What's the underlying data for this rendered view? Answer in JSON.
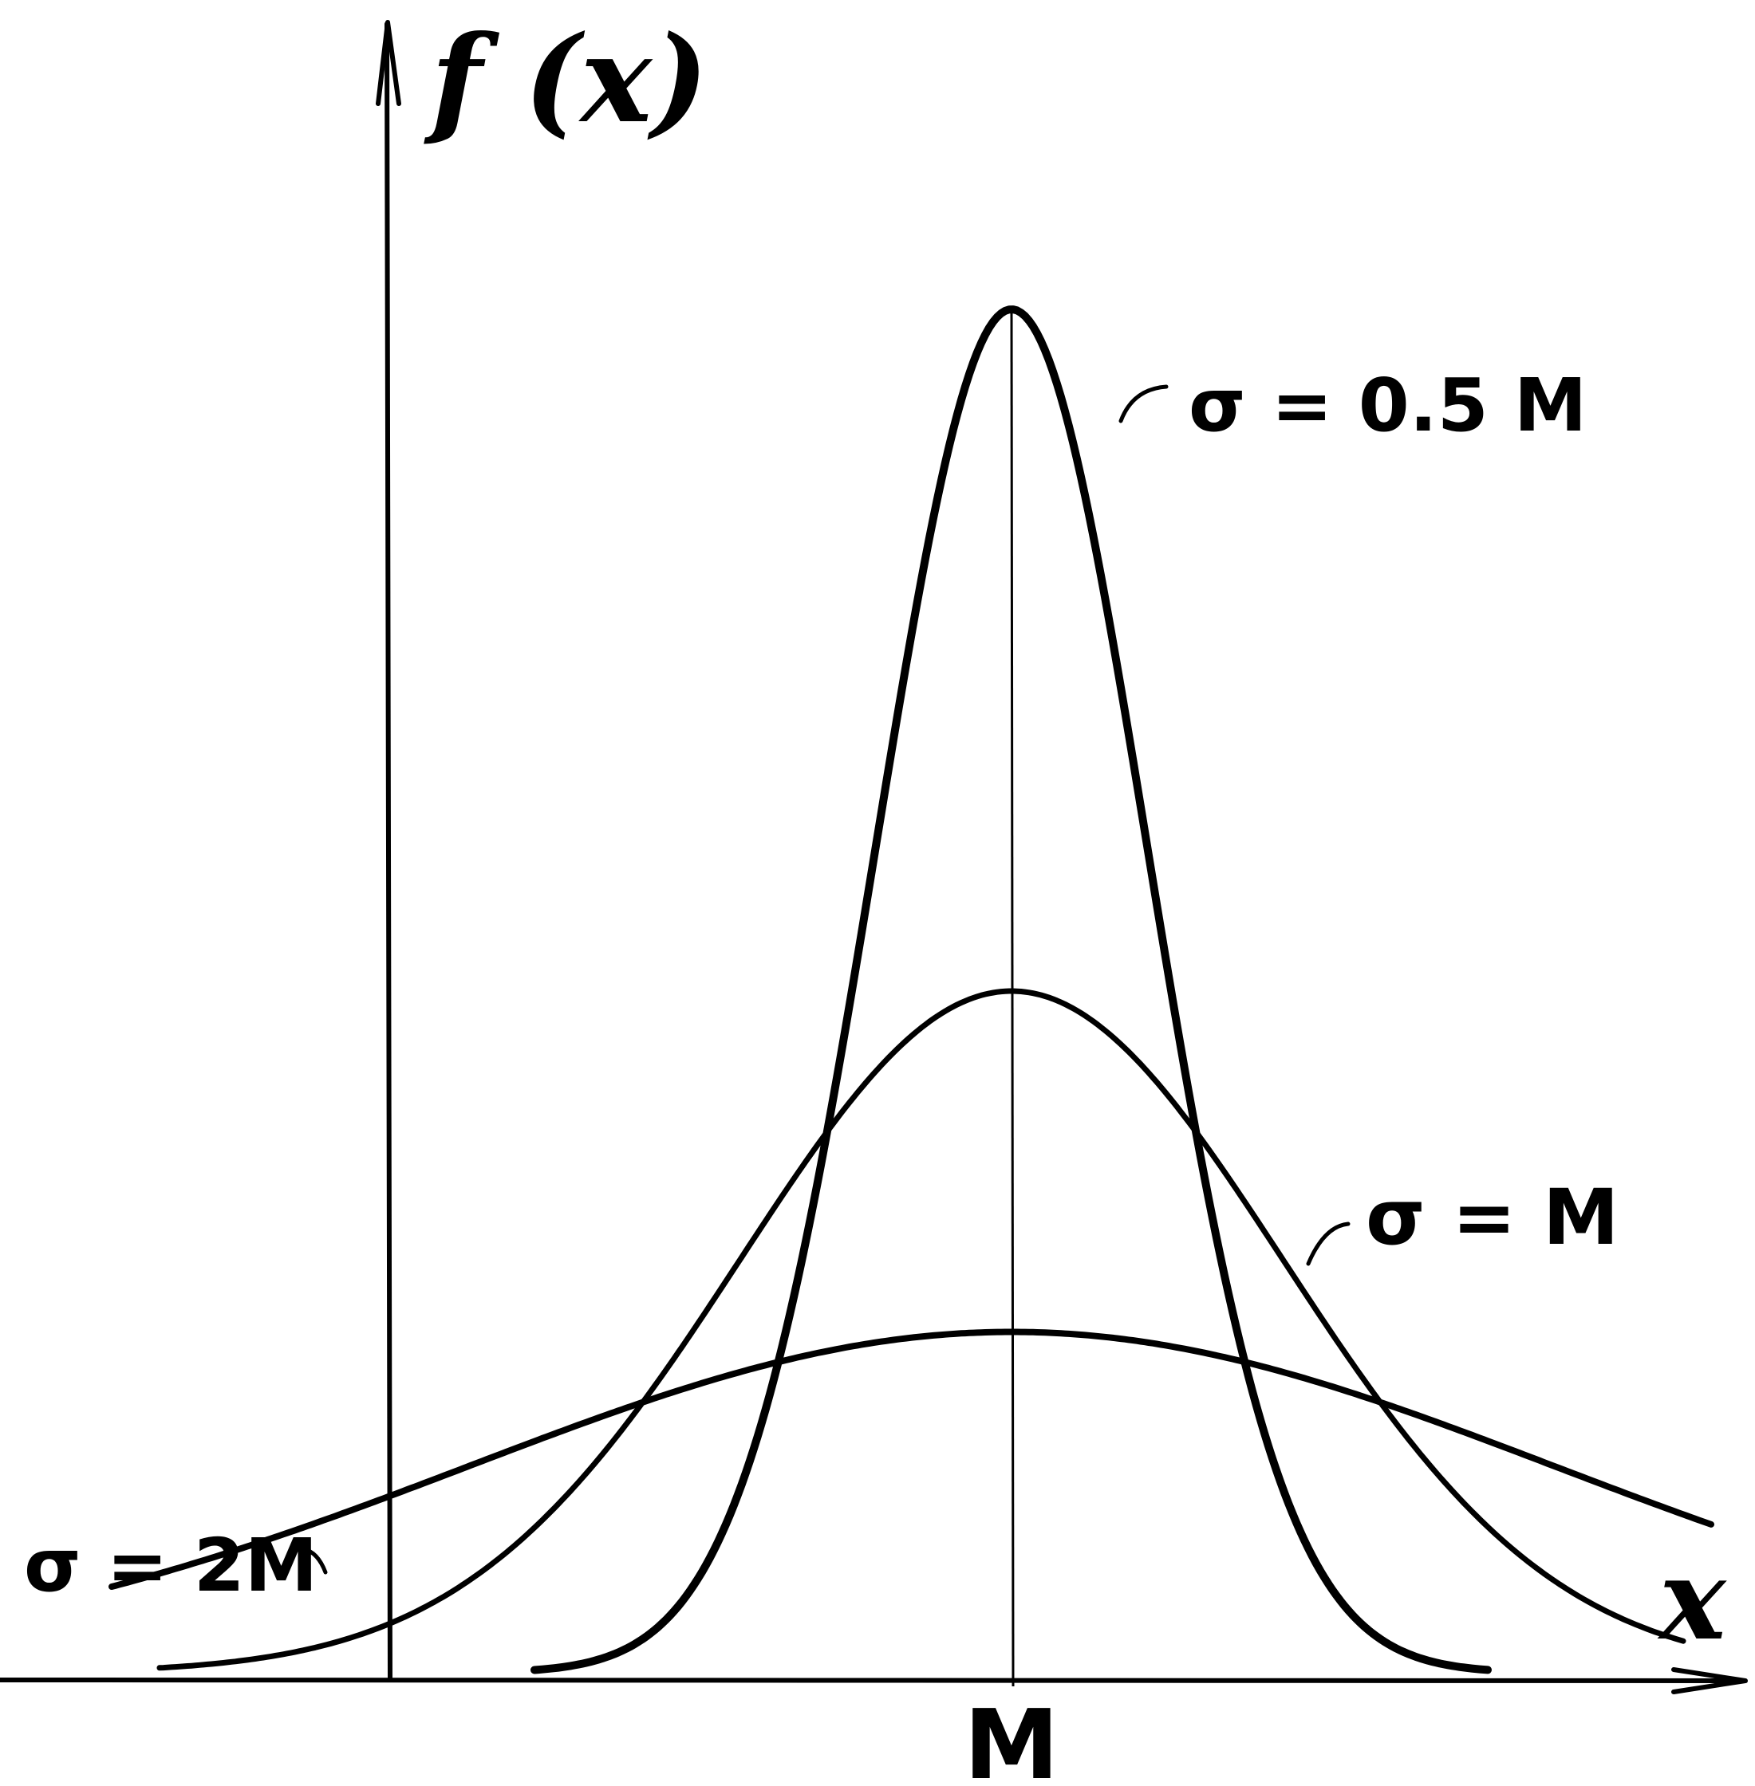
{
  "axes": {
    "y_label": "f (x)",
    "x_label": "x",
    "center_tick_label": "M"
  },
  "curves": [
    {
      "label": "σ = 0.5 M",
      "sigma_factor": 0.5
    },
    {
      "label": "σ = M",
      "sigma_factor": 1
    },
    {
      "label": "σ = 2M",
      "sigma_factor": 2
    }
  ],
  "colors": {
    "ink": "#000000",
    "paper": "#ffffff"
  }
}
